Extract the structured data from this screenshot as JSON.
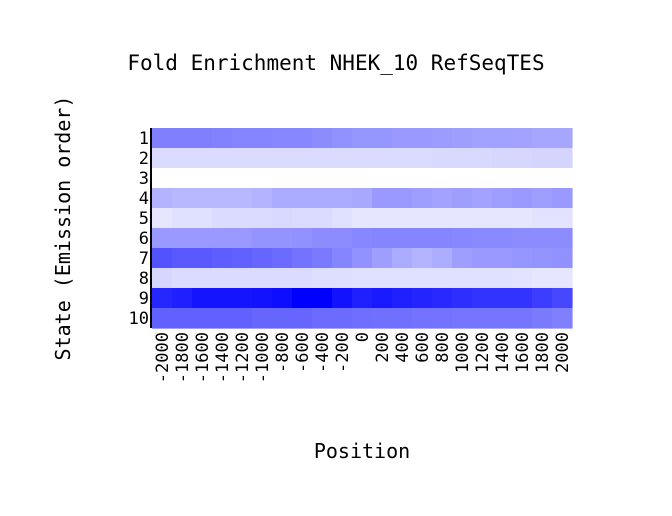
{
  "chart_data": {
    "type": "heatmap",
    "title": "Fold Enrichment NHEK_10 RefSeqTES",
    "xlabel": "Position",
    "ylabel": "State (Emission order)",
    "x_categories": [
      "-2000",
      "-1800",
      "-1600",
      "-1400",
      "-1200",
      "-1000",
      "-800",
      "-600",
      "-400",
      "-200",
      "0",
      "200",
      "400",
      "600",
      "800",
      "1000",
      "1200",
      "1400",
      "1600",
      "1800",
      "2000"
    ],
    "x_tick_labels": [
      "-2000",
      "-1800",
      "-1600",
      "-1400",
      "-1200",
      "-1000",
      "-800",
      "-600",
      "-400",
      "-200",
      "0",
      "200",
      "400",
      "600",
      "800",
      "1000",
      "1200",
      "1400",
      "1600",
      "1800",
      "2000"
    ],
    "y_categories": [
      "1",
      "2",
      "3",
      "4",
      "5",
      "6",
      "7",
      "8",
      "9",
      "10"
    ],
    "color_scale": {
      "low": "#ffffff",
      "high": "#0000ff"
    },
    "intensity": [
      [
        0.5,
        0.5,
        0.5,
        0.49,
        0.48,
        0.48,
        0.47,
        0.47,
        0.45,
        0.43,
        0.41,
        0.41,
        0.4,
        0.4,
        0.39,
        0.38,
        0.37,
        0.37,
        0.36,
        0.35,
        0.35
      ],
      [
        0.14,
        0.14,
        0.14,
        0.14,
        0.14,
        0.14,
        0.14,
        0.14,
        0.14,
        0.14,
        0.14,
        0.14,
        0.14,
        0.14,
        0.15,
        0.15,
        0.15,
        0.16,
        0.16,
        0.17,
        0.17
      ],
      [
        0.0,
        0.0,
        0.0,
        0.0,
        0.0,
        0.0,
        0.0,
        0.0,
        0.0,
        0.0,
        0.0,
        0.0,
        0.0,
        0.0,
        0.0,
        0.0,
        0.0,
        0.0,
        0.0,
        0.0,
        0.0
      ],
      [
        0.3,
        0.28,
        0.28,
        0.28,
        0.28,
        0.3,
        0.33,
        0.33,
        0.33,
        0.33,
        0.34,
        0.4,
        0.4,
        0.38,
        0.36,
        0.38,
        0.36,
        0.38,
        0.4,
        0.38,
        0.4
      ],
      [
        0.1,
        0.12,
        0.12,
        0.14,
        0.14,
        0.14,
        0.15,
        0.14,
        0.14,
        0.12,
        0.1,
        0.1,
        0.1,
        0.1,
        0.1,
        0.1,
        0.1,
        0.1,
        0.1,
        0.11,
        0.11
      ],
      [
        0.4,
        0.4,
        0.4,
        0.4,
        0.4,
        0.42,
        0.42,
        0.43,
        0.45,
        0.45,
        0.47,
        0.48,
        0.48,
        0.48,
        0.48,
        0.47,
        0.46,
        0.46,
        0.45,
        0.45,
        0.45
      ],
      [
        0.68,
        0.65,
        0.65,
        0.63,
        0.62,
        0.6,
        0.58,
        0.55,
        0.52,
        0.48,
        0.43,
        0.38,
        0.33,
        0.3,
        0.32,
        0.38,
        0.4,
        0.4,
        0.41,
        0.42,
        0.43
      ],
      [
        0.16,
        0.14,
        0.14,
        0.14,
        0.14,
        0.14,
        0.14,
        0.14,
        0.13,
        0.13,
        0.12,
        0.12,
        0.12,
        0.12,
        0.12,
        0.12,
        0.12,
        0.12,
        0.11,
        0.1,
        0.1
      ],
      [
        0.85,
        0.88,
        0.92,
        0.92,
        0.92,
        0.93,
        0.95,
        1.0,
        1.0,
        0.93,
        0.88,
        0.9,
        0.88,
        0.86,
        0.84,
        0.82,
        0.8,
        0.8,
        0.8,
        0.76,
        0.72
      ],
      [
        0.62,
        0.62,
        0.62,
        0.62,
        0.62,
        0.6,
        0.6,
        0.6,
        0.58,
        0.58,
        0.57,
        0.56,
        0.56,
        0.55,
        0.55,
        0.54,
        0.54,
        0.54,
        0.54,
        0.52,
        0.5
      ]
    ]
  }
}
